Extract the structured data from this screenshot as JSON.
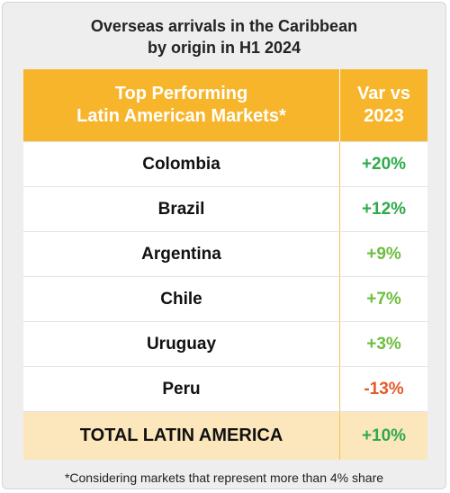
{
  "chart_data": {
    "type": "table",
    "title": "Overseas arrivals in the Caribbean",
    "title_line2": "by origin  in H1 2024",
    "columns": [
      "Top Performing Latin American Markets*",
      "Var vs 2023"
    ],
    "header": {
      "col1_line1": "Top Performing",
      "col1_line2": "Latin American Markets*",
      "col2_line1": "Var vs",
      "col2_line2": "2023"
    },
    "rows": [
      {
        "market": "Colombia",
        "variation": "+20%",
        "value": 20
      },
      {
        "market": "Brazil",
        "variation": "+12%",
        "value": 12
      },
      {
        "market": "Argentina",
        "variation": "+9%",
        "value": 9
      },
      {
        "market": "Chile",
        "variation": "+7%",
        "value": 7
      },
      {
        "market": "Uruguay",
        "variation": "+3%",
        "value": 3
      },
      {
        "market": "Peru",
        "variation": "-13%",
        "value": -13
      }
    ],
    "total": {
      "market": "TOTAL LATIN AMERICA",
      "variation": "+10%",
      "value": 10
    },
    "footnote": "*Considering markets that represent more than 4% share"
  },
  "colors": {
    "header": "#f7b52c",
    "total_row": "#fce7bd",
    "positive_strong": "#2eaa4a",
    "positive_light": "#6cbf3d",
    "negative": "#e45a2a"
  }
}
